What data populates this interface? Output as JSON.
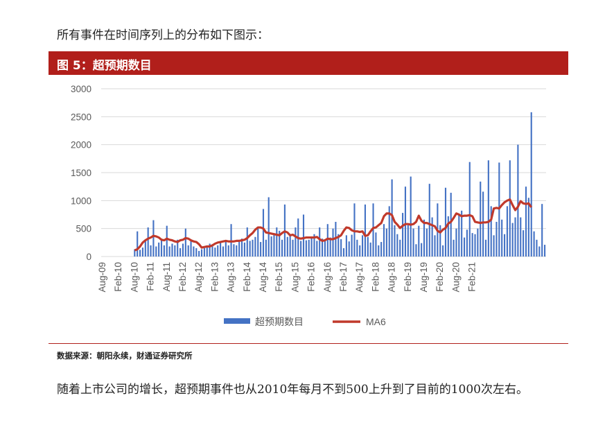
{
  "intro_text": "所有事件在时间序列上的分布如下图示：",
  "figure_title": "图 5：超预期数目",
  "source_text": "数据来源：朝阳永续，财通证券研究所",
  "paragraph": "随着上市公司的增长，超预期事件也从2010年每月不到500上升到了目前的1000次左右。",
  "colors": {
    "bar": "#4472c4",
    "line": "#c0392b",
    "banner": "#b11f1b"
  },
  "chart_data": {
    "type": "bar",
    "title": "",
    "xlabel": "",
    "ylabel": "",
    "ylim": [
      0,
      3000
    ],
    "yticks": [
      0,
      500,
      1000,
      1500,
      2000,
      2500,
      3000
    ],
    "x_start": "Aug-09",
    "x_tick_labels": [
      "Aug-09",
      "Feb-10",
      "Aug-10",
      "Feb-11",
      "Aug-11",
      "Feb-12",
      "Aug-12",
      "Feb-13",
      "Aug-13",
      "Feb-14",
      "Aug-14",
      "Feb-15",
      "Aug-15",
      "Feb-16",
      "Aug-16",
      "Feb-17",
      "Aug-17",
      "Feb-18",
      "Aug-18",
      "Feb-19",
      "Aug-19",
      "Feb-20",
      "Aug-20",
      "Feb-21"
    ],
    "legend_position": "bottom",
    "grid": true,
    "series": [
      {
        "name": "超预期数目",
        "kind": "bar",
        "values": [
          0,
          0,
          0,
          0,
          0,
          0,
          0,
          0,
          0,
          0,
          0,
          0,
          130,
          450,
          120,
          160,
          280,
          520,
          200,
          650,
          180,
          250,
          320,
          200,
          550,
          180,
          230,
          200,
          300,
          150,
          230,
          500,
          200,
          300,
          180,
          150,
          100,
          130,
          150,
          180,
          230,
          180,
          160,
          200,
          250,
          180,
          280,
          200,
          580,
          220,
          200,
          260,
          320,
          250,
          520,
          280,
          300,
          350,
          500,
          260,
          850,
          300,
          1060,
          360,
          400,
          520,
          460,
          300,
          930,
          350,
          400,
          300,
          520,
          680,
          280,
          750,
          290,
          300,
          360,
          400,
          280,
          520,
          320,
          300,
          580,
          340,
          500,
          620,
          400,
          310,
          150,
          380,
          270,
          390,
          950,
          300,
          200,
          380,
          930,
          350,
          250,
          950,
          430,
          200,
          260,
          580,
          500,
          900,
          1380,
          560,
          400,
          300,
          780,
          1250,
          560,
          1430,
          500,
          220,
          550,
          240,
          660,
          500,
          1300,
          700,
          380,
          950,
          560,
          200,
          1230,
          720,
          1140,
          300,
          500,
          760,
          820,
          340,
          480,
          1690,
          420,
          400,
          500,
          1340,
          1160,
          300,
          1720,
          900,
          380,
          620,
          1680,
          660,
          400,
          900,
          1720,
          600,
          700,
          2000,
          700,
          470,
          1250,
          1050,
          2580,
          450,
          300,
          180,
          940,
          210
        ]
      },
      {
        "name": "MA6",
        "kind": "line",
        "start_index": 12,
        "values": [
          110,
          130,
          180,
          250,
          290,
          320,
          340,
          370,
          360,
          340,
          300,
          290,
          320,
          300,
          290,
          270,
          260,
          290,
          300,
          330,
          320,
          290,
          270,
          260,
          220,
          160,
          170,
          180,
          180,
          200,
          230,
          250,
          260,
          270,
          280,
          270,
          270,
          270,
          280,
          280,
          290,
          300,
          330,
          380,
          420,
          480,
          520,
          520,
          500,
          430,
          420,
          410,
          400,
          390,
          380,
          420,
          450,
          430,
          380,
          390,
          360,
          330,
          320,
          330,
          340,
          340,
          340,
          340,
          350,
          310,
          280,
          290,
          320,
          310,
          310,
          330,
          350,
          380,
          460,
          520,
          510,
          470,
          450,
          450,
          440,
          450,
          370,
          380,
          450,
          510,
          520,
          560,
          600,
          720,
          770,
          770,
          740,
          620,
          570,
          510,
          550,
          580,
          580,
          570,
          580,
          620,
          730,
          640,
          600,
          600,
          580,
          560,
          540,
          460,
          430,
          480,
          510,
          590,
          620,
          690,
          770,
          750,
          720,
          730,
          730,
          740,
          720,
          620,
          610,
          600,
          610,
          610,
          620,
          660,
          860,
          870,
          860,
          920,
          970,
          1000,
          1020,
          920,
          830,
          890,
          990,
          950,
          940,
          950,
          880
        ]
      }
    ]
  }
}
